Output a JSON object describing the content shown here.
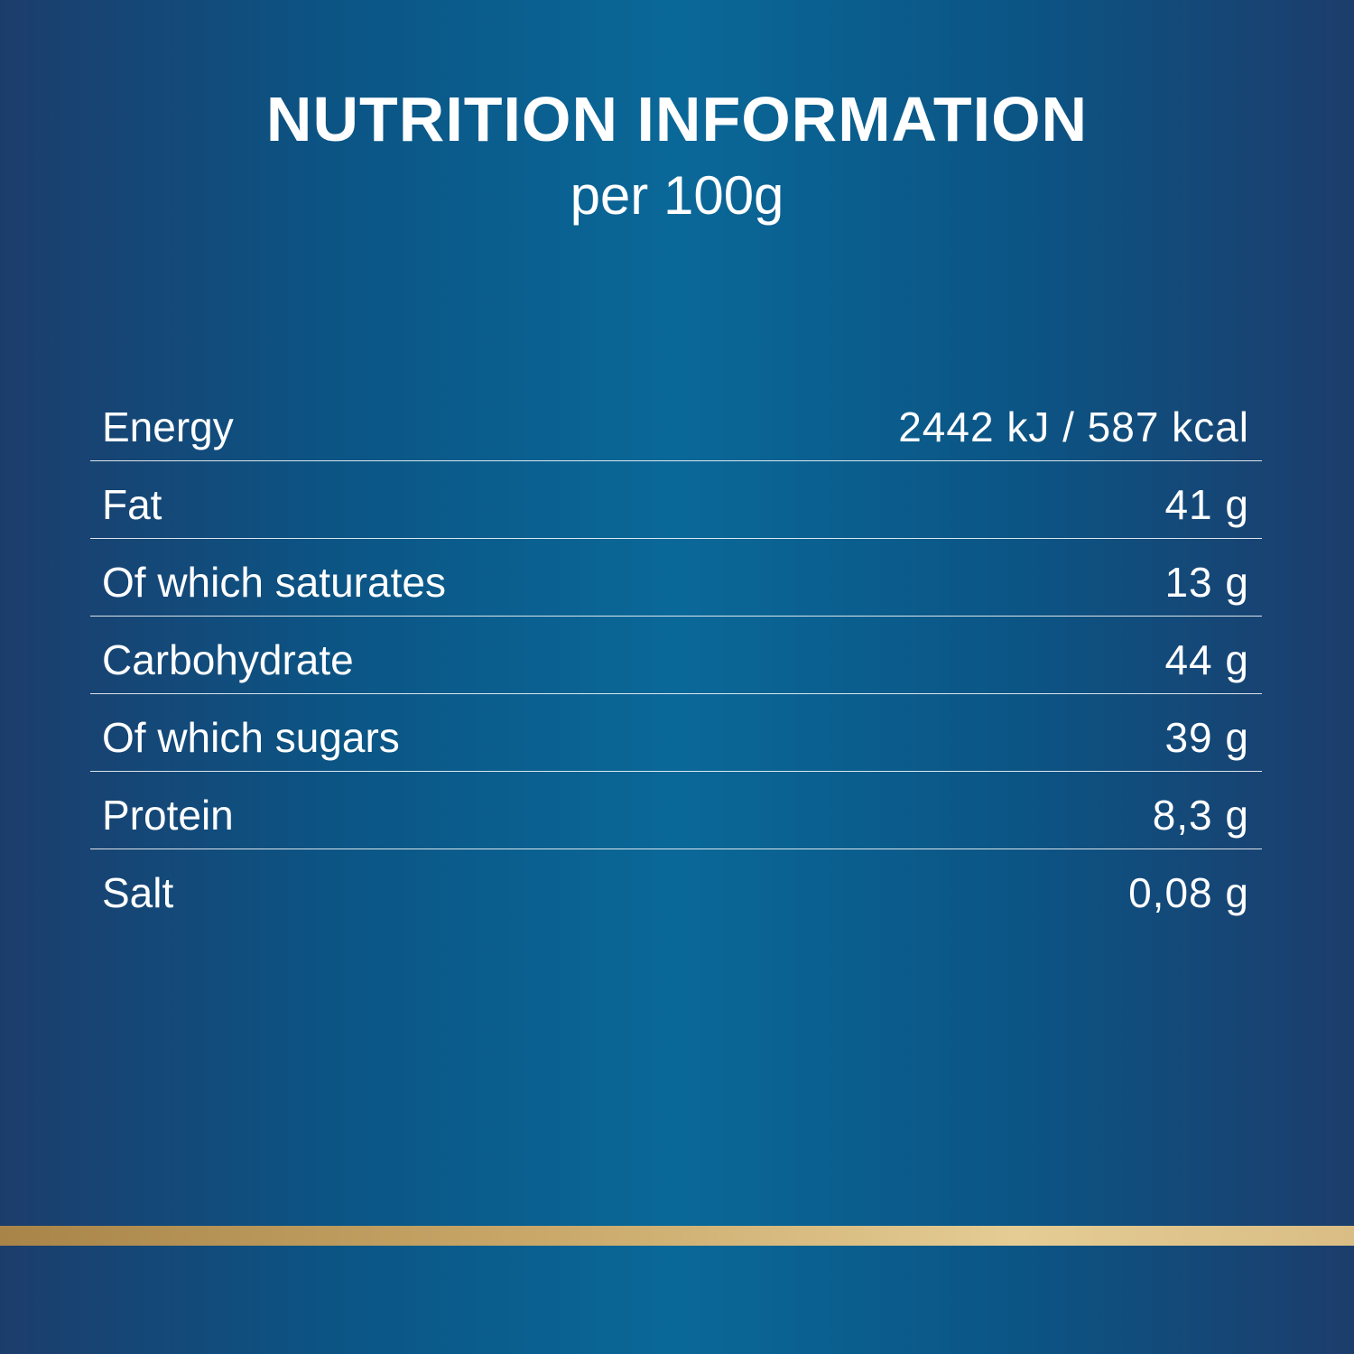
{
  "title": "NUTRITION INFORMATION",
  "subtitle": "per 100g",
  "rows": [
    {
      "label": "Energy",
      "value": "2442 kJ / 587 kcal"
    },
    {
      "label": "Fat",
      "value": "41 g"
    },
    {
      "label": "Of which saturates",
      "value": "13 g"
    },
    {
      "label": "Carbohydrate",
      "value": "44 g"
    },
    {
      "label": "Of which sugars",
      "value": "39 g"
    },
    {
      "label": "Protein",
      "value": "8,3 g"
    },
    {
      "label": "Salt",
      "value": "0,08 g"
    }
  ],
  "colors": {
    "background": "#0a6898",
    "edge": "#1c3d6c",
    "gold": "#c9a86a"
  }
}
